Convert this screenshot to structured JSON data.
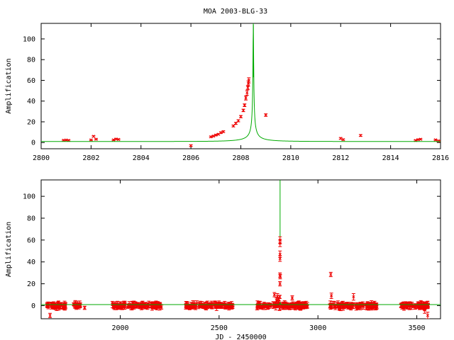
{
  "title": "MOA 2003-BLG-33",
  "colors": {
    "model": "#00aa00",
    "data": "#ee0000",
    "axis": "#000000"
  },
  "chart_data": [
    {
      "type": "scatter",
      "xlabel": "",
      "ylabel": "Amplification",
      "xlim": [
        2800,
        2816
      ],
      "ylim": [
        -6,
        115
      ],
      "xticks": [
        2800,
        2802,
        2804,
        2806,
        2808,
        2810,
        2812,
        2814,
        2816
      ],
      "yticks": [
        0,
        20,
        40,
        60,
        80,
        100
      ],
      "model": {
        "t0": 2808.5,
        "u0": 0.0086,
        "tE": 1.5
      },
      "points": [
        [
          2800.9,
          2.2,
          0.6
        ],
        [
          2801.0,
          2.4,
          0.6
        ],
        [
          2801.1,
          2.1,
          0.6
        ],
        [
          2802.0,
          2.5,
          0.6
        ],
        [
          2802.1,
          6.0,
          0.7
        ],
        [
          2802.2,
          3.2,
          0.6
        ],
        [
          2802.9,
          2.5,
          0.6
        ],
        [
          2803.0,
          3.4,
          0.6
        ],
        [
          2803.1,
          3.0,
          0.6
        ],
        [
          2806.0,
          -3.0,
          0.8
        ],
        [
          2806.8,
          5.5,
          0.7
        ],
        [
          2806.9,
          6.2,
          0.7
        ],
        [
          2807.0,
          7.2,
          0.7
        ],
        [
          2807.1,
          8.0,
          0.7
        ],
        [
          2807.2,
          9.5,
          0.8
        ],
        [
          2807.3,
          10.5,
          0.8
        ],
        [
          2807.7,
          16.0,
          0.9
        ],
        [
          2807.8,
          18.5,
          1.0
        ],
        [
          2807.9,
          21.0,
          1.0
        ],
        [
          2808.0,
          25.0,
          1.1
        ],
        [
          2808.1,
          31.0,
          1.2
        ],
        [
          2808.15,
          36.0,
          1.3
        ],
        [
          2808.2,
          43.0,
          2.0
        ],
        [
          2808.25,
          48.0,
          2.5
        ],
        [
          2808.3,
          57.0,
          2.5
        ],
        [
          2808.32,
          60.0,
          2.5
        ],
        [
          2808.28,
          53.0,
          2.0
        ],
        [
          2809.0,
          26.5,
          1.2
        ],
        [
          2812.0,
          4.0,
          0.8
        ],
        [
          2812.1,
          2.8,
          0.7
        ],
        [
          2812.8,
          6.8,
          0.9
        ],
        [
          2815.0,
          2.0,
          0.6
        ],
        [
          2815.1,
          2.8,
          0.6
        ],
        [
          2815.2,
          3.2,
          0.6
        ],
        [
          2815.8,
          2.6,
          0.6
        ],
        [
          2815.9,
          1.6,
          0.6
        ],
        [
          2816.0,
          1.3,
          0.6
        ]
      ]
    },
    {
      "type": "scatter",
      "xlabel": "JD - 2450000",
      "ylabel": "Amplification",
      "xlim": [
        1600,
        3620
      ],
      "ylim": [
        -12,
        115
      ],
      "xticks": [
        2000,
        2500,
        3000,
        3500
      ],
      "yticks": [
        0,
        20,
        40,
        60,
        80,
        100
      ],
      "model": {
        "t0": 2808.5,
        "u0": 0.0086,
        "tE": 1.5
      },
      "seasons": [
        [
          1630,
          1730
        ],
        [
          1760,
          1800
        ],
        [
          1960,
          2210
        ],
        [
          2330,
          2570
        ],
        [
          2690,
          2950
        ],
        [
          3060,
          3300
        ],
        [
          3420,
          3560
        ]
      ],
      "points": [
        [
          1645,
          -9.0,
          2.0
        ],
        [
          1820,
          -2.0,
          1.5
        ],
        [
          2780,
          10.0,
          2.0
        ],
        [
          2790,
          4.5,
          2.5
        ],
        [
          2795,
          8.5,
          2.5
        ],
        [
          2800,
          3.0,
          1.5
        ],
        [
          2802,
          6.0,
          1.5
        ],
        [
          2806,
          -3.0,
          1.5
        ],
        [
          2807,
          8.0,
          1.5
        ],
        [
          2808,
          20.0,
          2.0
        ],
        [
          2808.1,
          28.0,
          2.0
        ],
        [
          2808.2,
          43.0,
          2.5
        ],
        [
          2808.25,
          47.0,
          3.0
        ],
        [
          2808.3,
          57.0,
          3.0
        ],
        [
          2808.32,
          60.0,
          3.0
        ],
        [
          2809,
          26.5,
          2.0
        ],
        [
          2870,
          7.0,
          2.0
        ],
        [
          3065,
          28.5,
          2.0
        ],
        [
          3068,
          9.0,
          2.5
        ],
        [
          3180,
          8.0,
          3.0
        ],
        [
          3540,
          -4.0,
          3.0
        ],
        [
          3555,
          -9.0,
          3.0
        ]
      ]
    }
  ]
}
